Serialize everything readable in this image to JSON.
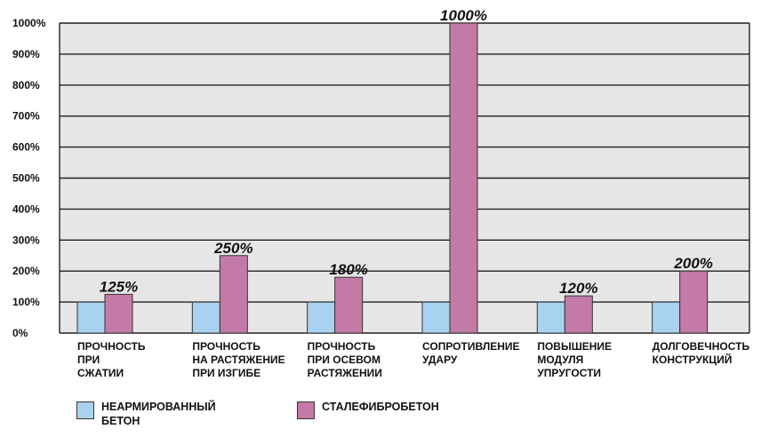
{
  "chart_data": {
    "type": "bar",
    "categories": [
      "ПРОЧНОСТЬ\nПРИ\nСЖАТИИ",
      "ПРОЧНОСТЬ\nНА РАСТЯЖЕНИЕ\nПРИ ИЗГИБЕ",
      "ПРОЧНОСТЬ\nПРИ ОСЕВОМ\nРАСТЯЖЕНИИ",
      "СОПРОТИВЛЕНИЕ\nУДАРУ",
      "ПОВЫШЕНИЕ\nМОДУЛЯ\nУПРУГОСТИ",
      "ДОЛГОВЕЧНОСТЬ\nКОНСТРУКЦИЙ"
    ],
    "series": [
      {
        "name": "НЕАРМИРОВАННЫЙ\nБЕТОН",
        "values": [
          100,
          100,
          100,
          100,
          100,
          100
        ],
        "color": "#a9d2f0"
      },
      {
        "name": "СТАЛЕФИБРОБЕТОН",
        "values": [
          125,
          250,
          180,
          1000,
          120,
          200
        ],
        "color": "#c47aa6"
      }
    ],
    "data_labels": [
      "125%",
      "250%",
      "180%",
      "1000%",
      "120%",
      "200%"
    ],
    "yticks": [
      "0%",
      "100%",
      "200%",
      "300%",
      "400%",
      "500%",
      "600%",
      "700%",
      "800%",
      "900%",
      "1000%"
    ],
    "ylim": [
      0,
      1000
    ],
    "grid": true,
    "plot_background": "#e6e6e6",
    "legend_position": "bottom-left"
  }
}
